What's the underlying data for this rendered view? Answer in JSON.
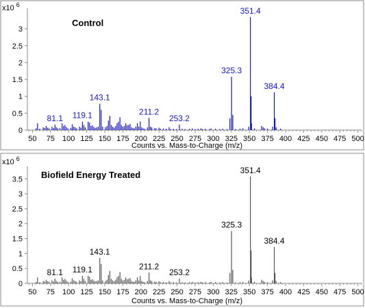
{
  "colors": {
    "control": "#1515c8",
    "treated": "#555555",
    "frame": "#888888"
  },
  "chart_data": [
    {
      "type": "bar",
      "title": "Control",
      "xlabel": "Counts vs. Mass-to-Charge (m/z)",
      "y_exponent_label": "x10",
      "y_exponent_power": "6",
      "xlim": [
        43,
        507
      ],
      "ylim": [
        0,
        3.55
      ],
      "x_ticks": [
        "50",
        "75",
        "100",
        "125",
        "150",
        "175",
        "200",
        "225",
        "250",
        "275",
        "300",
        "325",
        "350",
        "375",
        "400",
        "425",
        "450",
        "475",
        "500"
      ],
      "y_ticks": [
        "0",
        "0.5",
        "1",
        "1.5",
        "2",
        "2.5",
        "3"
      ],
      "color": "#1515c8",
      "peaks": [
        [
          55,
          0.05
        ],
        [
          57,
          0.2
        ],
        [
          60,
          0.04
        ],
        [
          65,
          0.08
        ],
        [
          67,
          0.06
        ],
        [
          69,
          0.12
        ],
        [
          71,
          0.07
        ],
        [
          73,
          0.05
        ],
        [
          77,
          0.1
        ],
        [
          79,
          0.06
        ],
        [
          81.1,
          0.16
        ],
        [
          83,
          0.08
        ],
        [
          85,
          0.05
        ],
        [
          88,
          0.06
        ],
        [
          91,
          0.2
        ],
        [
          93,
          0.12
        ],
        [
          95,
          0.15
        ],
        [
          97,
          0.09
        ],
        [
          99,
          0.05
        ],
        [
          103,
          0.06
        ],
        [
          105,
          0.17
        ],
        [
          107,
          0.1
        ],
        [
          109,
          0.08
        ],
        [
          111,
          0.05
        ],
        [
          115,
          0.1
        ],
        [
          117,
          0.07
        ],
        [
          119.1,
          0.25
        ],
        [
          121,
          0.15
        ],
        [
          123,
          0.08
        ],
        [
          127,
          0.25
        ],
        [
          129,
          0.22
        ],
        [
          131,
          0.12
        ],
        [
          133,
          0.14
        ],
        [
          135,
          0.09
        ],
        [
          137,
          0.06
        ],
        [
          139,
          0.08
        ],
        [
          141,
          0.1
        ],
        [
          143.1,
          0.78
        ],
        [
          145,
          0.6
        ],
        [
          147,
          0.1
        ],
        [
          151,
          0.08
        ],
        [
          153,
          0.12
        ],
        [
          155,
          0.28
        ],
        [
          157,
          0.42
        ],
        [
          159,
          0.15
        ],
        [
          161,
          0.1
        ],
        [
          163,
          0.07
        ],
        [
          165,
          0.12
        ],
        [
          167,
          0.2
        ],
        [
          169,
          0.25
        ],
        [
          171,
          0.38
        ],
        [
          173,
          0.15
        ],
        [
          175,
          0.1
        ],
        [
          177,
          0.12
        ],
        [
          179,
          0.2
        ],
        [
          181,
          0.14
        ],
        [
          183,
          0.15
        ],
        [
          185,
          0.18
        ],
        [
          187,
          0.08
        ],
        [
          189,
          0.06
        ],
        [
          191,
          0.05
        ],
        [
          193,
          0.1
        ],
        [
          195,
          0.2
        ],
        [
          197,
          0.1
        ],
        [
          199,
          0.25
        ],
        [
          201,
          0.08
        ],
        [
          203,
          0.05
        ],
        [
          205,
          0.04
        ],
        [
          209,
          0.08
        ],
        [
          211.2,
          0.36
        ],
        [
          213,
          0.1
        ],
        [
          215,
          0.08
        ],
        [
          219,
          0.06
        ],
        [
          221,
          0.05
        ],
        [
          225,
          0.07
        ],
        [
          227,
          0.04
        ],
        [
          231,
          0.05
        ],
        [
          235,
          0.04
        ],
        [
          239,
          0.08
        ],
        [
          241,
          0.03
        ],
        [
          245,
          0.04
        ],
        [
          249,
          0.03
        ],
        [
          253.2,
          0.16
        ],
        [
          257,
          0.04
        ],
        [
          261,
          0.03
        ],
        [
          267,
          0.04
        ],
        [
          271,
          0.05
        ],
        [
          275,
          0.03
        ],
        [
          279,
          0.04
        ],
        [
          283,
          0.05
        ],
        [
          285,
          0.03
        ],
        [
          289,
          0.04
        ],
        [
          295,
          0.03
        ],
        [
          297,
          0.05
        ],
        [
          303,
          0.04
        ],
        [
          309,
          0.03
        ],
        [
          313,
          0.04
        ],
        [
          319,
          0.03
        ],
        [
          323,
          0.35
        ],
        [
          325.3,
          1.58
        ],
        [
          327,
          0.45
        ],
        [
          331,
          0.03
        ],
        [
          337,
          0.04
        ],
        [
          341,
          0.05
        ],
        [
          349,
          0.1
        ],
        [
          351.4,
          3.35
        ],
        [
          352.4,
          1.0
        ],
        [
          353,
          0.2
        ],
        [
          357,
          0.05
        ],
        [
          367,
          0.12
        ],
        [
          369,
          0.08
        ],
        [
          371,
          0.05
        ],
        [
          375,
          0.04
        ],
        [
          382,
          0.1
        ],
        [
          384.4,
          1.12
        ],
        [
          385.4,
          0.35
        ],
        [
          387,
          0.08
        ],
        [
          393,
          0.04
        ]
      ],
      "labels": [
        {
          "text": "81.1",
          "x": 81.1,
          "y": 0.16
        },
        {
          "text": "119.1",
          "x": 119.1,
          "y": 0.25
        },
        {
          "text": "143.1",
          "x": 143.1,
          "y": 0.78
        },
        {
          "text": "211.2",
          "x": 211.2,
          "y": 0.36
        },
        {
          "text": "253.2",
          "x": 253.2,
          "y": 0.16
        },
        {
          "text": "325.3",
          "x": 325.3,
          "y": 1.58
        },
        {
          "text": "351.4",
          "x": 351.4,
          "y": 3.35
        },
        {
          "text": "384.4",
          "x": 384.4,
          "y": 1.12
        }
      ]
    },
    {
      "type": "bar",
      "title": "Biofield  Energy  Treated",
      "xlabel": "Counts vs. Mass-to-Charge (m/z)",
      "y_exponent_label": "x10",
      "y_exponent_power": "6",
      "xlim": [
        43,
        507
      ],
      "ylim": [
        0,
        3.85
      ],
      "x_ticks": [
        "50",
        "75",
        "100",
        "125",
        "150",
        "175",
        "200",
        "225",
        "250",
        "275",
        "300",
        "325",
        "350",
        "375",
        "400",
        "425",
        "450",
        "475",
        "500"
      ],
      "y_ticks": [
        "0",
        "0.5",
        "1",
        "1.5",
        "2",
        "2.5",
        "3",
        "3.5"
      ],
      "color": "#555555",
      "peaks": [
        [
          55,
          0.05
        ],
        [
          57,
          0.2
        ],
        [
          60,
          0.04
        ],
        [
          65,
          0.08
        ],
        [
          67,
          0.06
        ],
        [
          69,
          0.12
        ],
        [
          71,
          0.07
        ],
        [
          73,
          0.05
        ],
        [
          77,
          0.1
        ],
        [
          79,
          0.06
        ],
        [
          81.1,
          0.16
        ],
        [
          83,
          0.08
        ],
        [
          85,
          0.05
        ],
        [
          88,
          0.06
        ],
        [
          91,
          0.2
        ],
        [
          93,
          0.12
        ],
        [
          95,
          0.15
        ],
        [
          97,
          0.09
        ],
        [
          99,
          0.05
        ],
        [
          103,
          0.06
        ],
        [
          105,
          0.17
        ],
        [
          107,
          0.1
        ],
        [
          109,
          0.08
        ],
        [
          111,
          0.05
        ],
        [
          115,
          0.1
        ],
        [
          117,
          0.07
        ],
        [
          119.1,
          0.25
        ],
        [
          121,
          0.15
        ],
        [
          123,
          0.08
        ],
        [
          127,
          0.25
        ],
        [
          129,
          0.22
        ],
        [
          131,
          0.12
        ],
        [
          133,
          0.14
        ],
        [
          135,
          0.09
        ],
        [
          137,
          0.06
        ],
        [
          139,
          0.08
        ],
        [
          141,
          0.1
        ],
        [
          143.1,
          0.85
        ],
        [
          145,
          0.65
        ],
        [
          147,
          0.1
        ],
        [
          151,
          0.08
        ],
        [
          153,
          0.12
        ],
        [
          155,
          0.28
        ],
        [
          157,
          0.42
        ],
        [
          159,
          0.15
        ],
        [
          161,
          0.1
        ],
        [
          163,
          0.07
        ],
        [
          165,
          0.12
        ],
        [
          167,
          0.2
        ],
        [
          169,
          0.25
        ],
        [
          171,
          0.38
        ],
        [
          173,
          0.15
        ],
        [
          175,
          0.1
        ],
        [
          177,
          0.12
        ],
        [
          179,
          0.2
        ],
        [
          181,
          0.14
        ],
        [
          183,
          0.15
        ],
        [
          185,
          0.18
        ],
        [
          187,
          0.08
        ],
        [
          189,
          0.06
        ],
        [
          191,
          0.05
        ],
        [
          193,
          0.1
        ],
        [
          195,
          0.2
        ],
        [
          197,
          0.1
        ],
        [
          199,
          0.25
        ],
        [
          201,
          0.08
        ],
        [
          203,
          0.05
        ],
        [
          205,
          0.04
        ],
        [
          209,
          0.08
        ],
        [
          211.2,
          0.36
        ],
        [
          213,
          0.1
        ],
        [
          215,
          0.08
        ],
        [
          219,
          0.06
        ],
        [
          221,
          0.05
        ],
        [
          225,
          0.07
        ],
        [
          227,
          0.04
        ],
        [
          231,
          0.05
        ],
        [
          235,
          0.04
        ],
        [
          239,
          0.08
        ],
        [
          241,
          0.03
        ],
        [
          245,
          0.04
        ],
        [
          249,
          0.03
        ],
        [
          253.2,
          0.16
        ],
        [
          257,
          0.04
        ],
        [
          261,
          0.03
        ],
        [
          267,
          0.04
        ],
        [
          271,
          0.05
        ],
        [
          275,
          0.03
        ],
        [
          279,
          0.04
        ],
        [
          283,
          0.05
        ],
        [
          285,
          0.03
        ],
        [
          289,
          0.04
        ],
        [
          295,
          0.03
        ],
        [
          297,
          0.05
        ],
        [
          303,
          0.04
        ],
        [
          309,
          0.03
        ],
        [
          313,
          0.04
        ],
        [
          319,
          0.03
        ],
        [
          323,
          0.35
        ],
        [
          325.3,
          1.75
        ],
        [
          327,
          0.45
        ],
        [
          331,
          0.03
        ],
        [
          337,
          0.04
        ],
        [
          341,
          0.05
        ],
        [
          349,
          0.1
        ],
        [
          351.4,
          3.58
        ],
        [
          352.4,
          1.1
        ],
        [
          353,
          0.2
        ],
        [
          357,
          0.05
        ],
        [
          367,
          0.12
        ],
        [
          369,
          0.08
        ],
        [
          371,
          0.05
        ],
        [
          375,
          0.04
        ],
        [
          382,
          0.1
        ],
        [
          384.4,
          1.22
        ],
        [
          385.4,
          0.35
        ],
        [
          387,
          0.08
        ],
        [
          393,
          0.04
        ]
      ],
      "labels": [
        {
          "text": "81.1",
          "x": 81.1,
          "y": 0.16
        },
        {
          "text": "119.1",
          "x": 119.1,
          "y": 0.25
        },
        {
          "text": "143.1",
          "x": 143.1,
          "y": 0.85
        },
        {
          "text": "211.2",
          "x": 211.2,
          "y": 0.36
        },
        {
          "text": "253.2",
          "x": 253.2,
          "y": 0.16
        },
        {
          "text": "325.3",
          "x": 325.3,
          "y": 1.75
        },
        {
          "text": "351.4",
          "x": 351.4,
          "y": 3.58
        },
        {
          "text": "384.4",
          "x": 384.4,
          "y": 1.22
        }
      ]
    }
  ]
}
